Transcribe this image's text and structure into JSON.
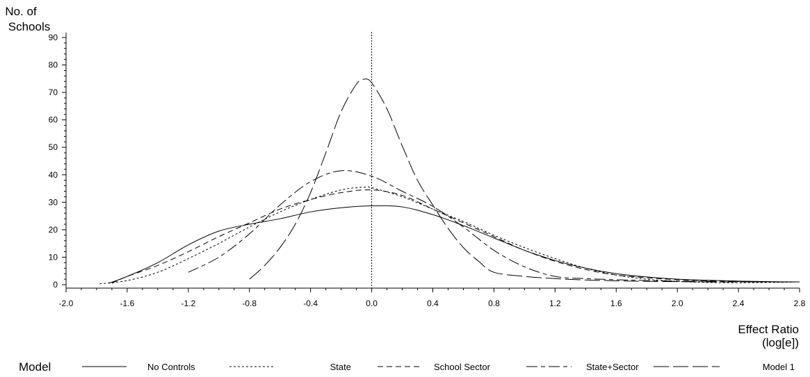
{
  "chart_data": {
    "type": "line",
    "xlabel": "Effect Ratio (log[e])",
    "xlabel_lines": [
      "Effect Ratio",
      "(log[e])"
    ],
    "ylabel": "No. of Schools",
    "ylabel_lines": [
      "No. of",
      "Schools"
    ],
    "xlim": [
      -2.0,
      2.8
    ],
    "ylim": [
      0,
      90
    ],
    "x_ticks": [
      -2.0,
      -1.6,
      -1.2,
      -0.8,
      -0.4,
      0.0,
      0.4,
      0.8,
      1.2,
      1.6,
      2.0,
      2.4,
      2.8
    ],
    "x_tick_labels": [
      "-2.0",
      "-1.6",
      "-1.2",
      "-0.8",
      "-0.4",
      "0.0",
      "0.4",
      "0.8",
      "1.2",
      "1.6",
      "2.0",
      "2.4",
      "2.8"
    ],
    "y_ticks": [
      0,
      10,
      20,
      30,
      40,
      50,
      60,
      70,
      80,
      90
    ],
    "y_tick_labels": [
      "0",
      "10",
      "20",
      "30",
      "40",
      "50",
      "60",
      "70",
      "80",
      "90"
    ],
    "reference_line_x": 0.0,
    "grid": false,
    "legend": {
      "title": "Model",
      "placement": "bottom"
    },
    "series": [
      {
        "name": "No Controls",
        "dash": "solid",
        "x": [
          -1.72,
          -1.6,
          -1.4,
          -1.2,
          -1.0,
          -0.8,
          -0.6,
          -0.4,
          -0.2,
          0.0,
          0.2,
          0.4,
          0.6,
          0.8,
          1.0,
          1.2,
          1.4,
          1.6,
          1.8,
          2.0,
          2.2,
          2.4,
          2.6,
          2.8
        ],
        "y": [
          0.5,
          3,
          8,
          14.5,
          19.5,
          22,
          24,
          26.5,
          28,
          28.7,
          28.3,
          25.5,
          21.5,
          17,
          12.5,
          8.8,
          6,
          4,
          2.8,
          2,
          1.6,
          1.3,
          1.1,
          1.0
        ]
      },
      {
        "name": "State",
        "dash": "short",
        "x": [
          -1.78,
          -1.6,
          -1.4,
          -1.2,
          -1.0,
          -0.8,
          -0.6,
          -0.4,
          -0.2,
          -0.05,
          0.0,
          0.2,
          0.4,
          0.6,
          0.8,
          1.0,
          1.2,
          1.4,
          1.6,
          1.8,
          2.0,
          2.2,
          2.4,
          2.6,
          2.8
        ],
        "y": [
          0.3,
          1.5,
          4.5,
          9.5,
          15,
          21,
          26.5,
          31,
          34.5,
          35.5,
          35.3,
          32,
          27.5,
          23,
          18,
          13.5,
          9.5,
          6,
          3.5,
          2,
          1.2,
          0.8,
          0.7,
          0.8,
          1.0
        ]
      },
      {
        "name": "School Sector",
        "dash": "medium",
        "x": [
          -1.7,
          -1.6,
          -1.4,
          -1.2,
          -1.0,
          -0.8,
          -0.6,
          -0.4,
          -0.2,
          0.0,
          0.2,
          0.4,
          0.6,
          0.8,
          1.0,
          1.2,
          1.4,
          1.6,
          1.8,
          2.0,
          2.2,
          2.4,
          2.6,
          2.8
        ],
        "y": [
          0.5,
          3,
          7,
          12,
          17.5,
          22.5,
          27.5,
          31,
          33.5,
          34.5,
          32.5,
          27.5,
          22.5,
          17.5,
          12.5,
          8.5,
          5.5,
          3.5,
          2.5,
          1.8,
          1.4,
          1.2,
          1.0,
          1.0
        ]
      },
      {
        "name": "State+Sector",
        "dash": "long-short",
        "x": [
          -1.2,
          -1.0,
          -0.8,
          -0.6,
          -0.4,
          -0.2,
          0.0,
          0.2,
          0.4,
          0.6,
          0.8,
          1.0,
          1.2,
          1.4,
          1.6,
          1.8,
          2.0,
          2.2,
          2.4,
          2.6,
          2.8
        ],
        "y": [
          4.5,
          10,
          18.5,
          29,
          37.5,
          41.5,
          39.5,
          34,
          28.5,
          21,
          12.5,
          6.5,
          3,
          2.2,
          1.8,
          1.5,
          1.3,
          1.2,
          1.1,
          1.0,
          1.0
        ]
      },
      {
        "name": "Model 1",
        "dash": "long",
        "x": [
          -0.8,
          -0.7,
          -0.6,
          -0.5,
          -0.4,
          -0.3,
          -0.2,
          -0.1,
          -0.05,
          0.0,
          0.1,
          0.2,
          0.3,
          0.4,
          0.5,
          0.6,
          0.7,
          0.8,
          1.0,
          1.2,
          1.4,
          1.6,
          1.8,
          2.0,
          2.2,
          2.4,
          2.6,
          2.8
        ],
        "y": [
          2,
          7,
          13.5,
          22,
          33.5,
          48,
          63,
          73,
          74.8,
          73.5,
          64,
          50.5,
          38,
          29,
          20.5,
          13.5,
          8.5,
          4.5,
          3,
          2.2,
          1.7,
          1.4,
          1.2,
          1.1,
          1.0,
          1.0,
          1.0,
          1.0
        ]
      }
    ]
  }
}
